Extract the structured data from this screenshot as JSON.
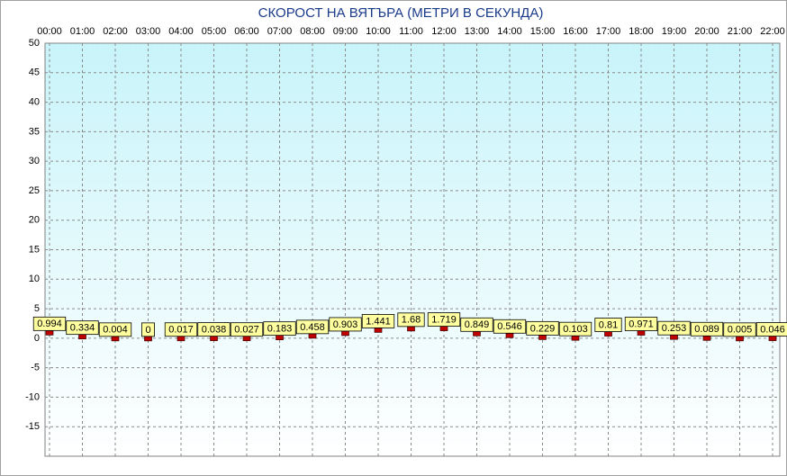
{
  "chart_data": {
    "type": "point",
    "title": "СКОРОСТ НА ВЯТЪРА (МЕТРИ В СЕКУНДА)",
    "categories": [
      "00:00",
      "01:00",
      "02:00",
      "03:00",
      "04:00",
      "05:00",
      "06:00",
      "07:00",
      "08:00",
      "09:00",
      "10:00",
      "11:00",
      "12:00",
      "13:00",
      "14:00",
      "15:00",
      "16:00",
      "17:00",
      "18:00",
      "19:00",
      "20:00",
      "21:00",
      "22:00"
    ],
    "values": [
      0.994,
      0.334,
      0.004,
      0,
      0.017,
      0.038,
      0.027,
      0.183,
      0.458,
      0.903,
      1.441,
      1.68,
      1.719,
      0.849,
      0.546,
      0.229,
      0.103,
      0.81,
      0.971,
      0.253,
      0.089,
      0.005,
      0.046
    ],
    "color": "#c00000",
    "ylim": [
      -20,
      50
    ],
    "yticks": [
      -15,
      -10,
      -5,
      0,
      5,
      10,
      15,
      20,
      25,
      30,
      35,
      40,
      45,
      50
    ],
    "grid": true
  }
}
